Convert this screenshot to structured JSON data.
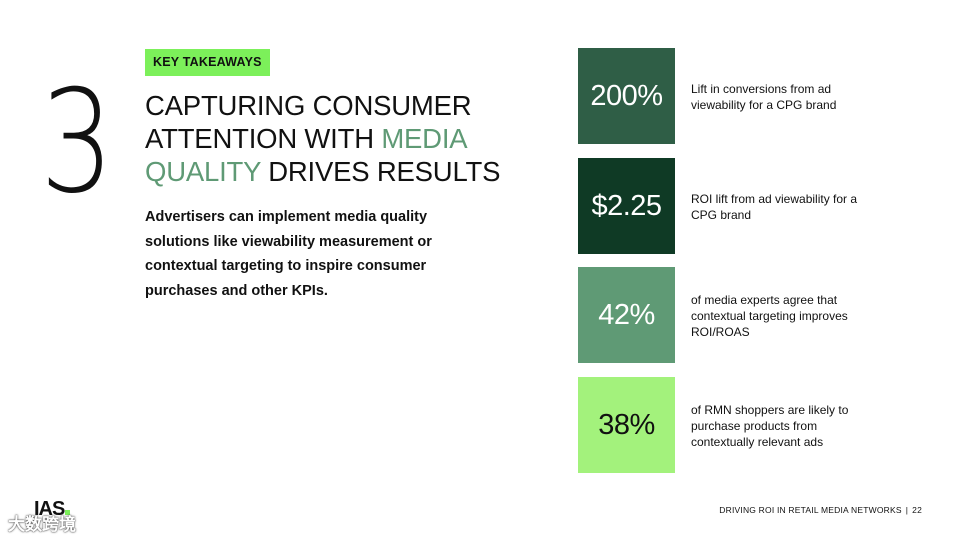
{
  "section_number": "3",
  "tag": "KEY TAKEAWAYS",
  "headline": {
    "part1": "CAPTURING CONSUMER ATTENTION WITH ",
    "accent": "MEDIA QUALITY",
    "part2": " DRIVES RESULTS"
  },
  "body": "Advertisers can implement media quality solutions like viewability measurement or contextual targeting to inspire consumer purchases and other KPIs.",
  "stats": [
    {
      "value": "200%",
      "desc": "Lift in conversions from ad viewability for a CPG brand",
      "color": "#2f5e46",
      "text_color": "#ffffff"
    },
    {
      "value": "$2.25",
      "desc": "ROI lift from ad viewability for a CPG brand",
      "color": "#0f3a25",
      "text_color": "#ffffff"
    },
    {
      "value": "42%",
      "desc": "of media experts agree that contextual targeting improves ROI/ROAS",
      "color": "#5f9a75",
      "text_color": "#ffffff"
    },
    {
      "value": "38%",
      "desc": "of RMN shoppers are likely to purchase products from contextually relevant ads",
      "color": "#a3f27c",
      "text_color": "#111111"
    }
  ],
  "footer": {
    "logo": "IAS",
    "doc_title": "DRIVING ROI IN RETAIL MEDIA NETWORKS",
    "separator": "|",
    "page": "22"
  },
  "watermark": "大数跨境"
}
